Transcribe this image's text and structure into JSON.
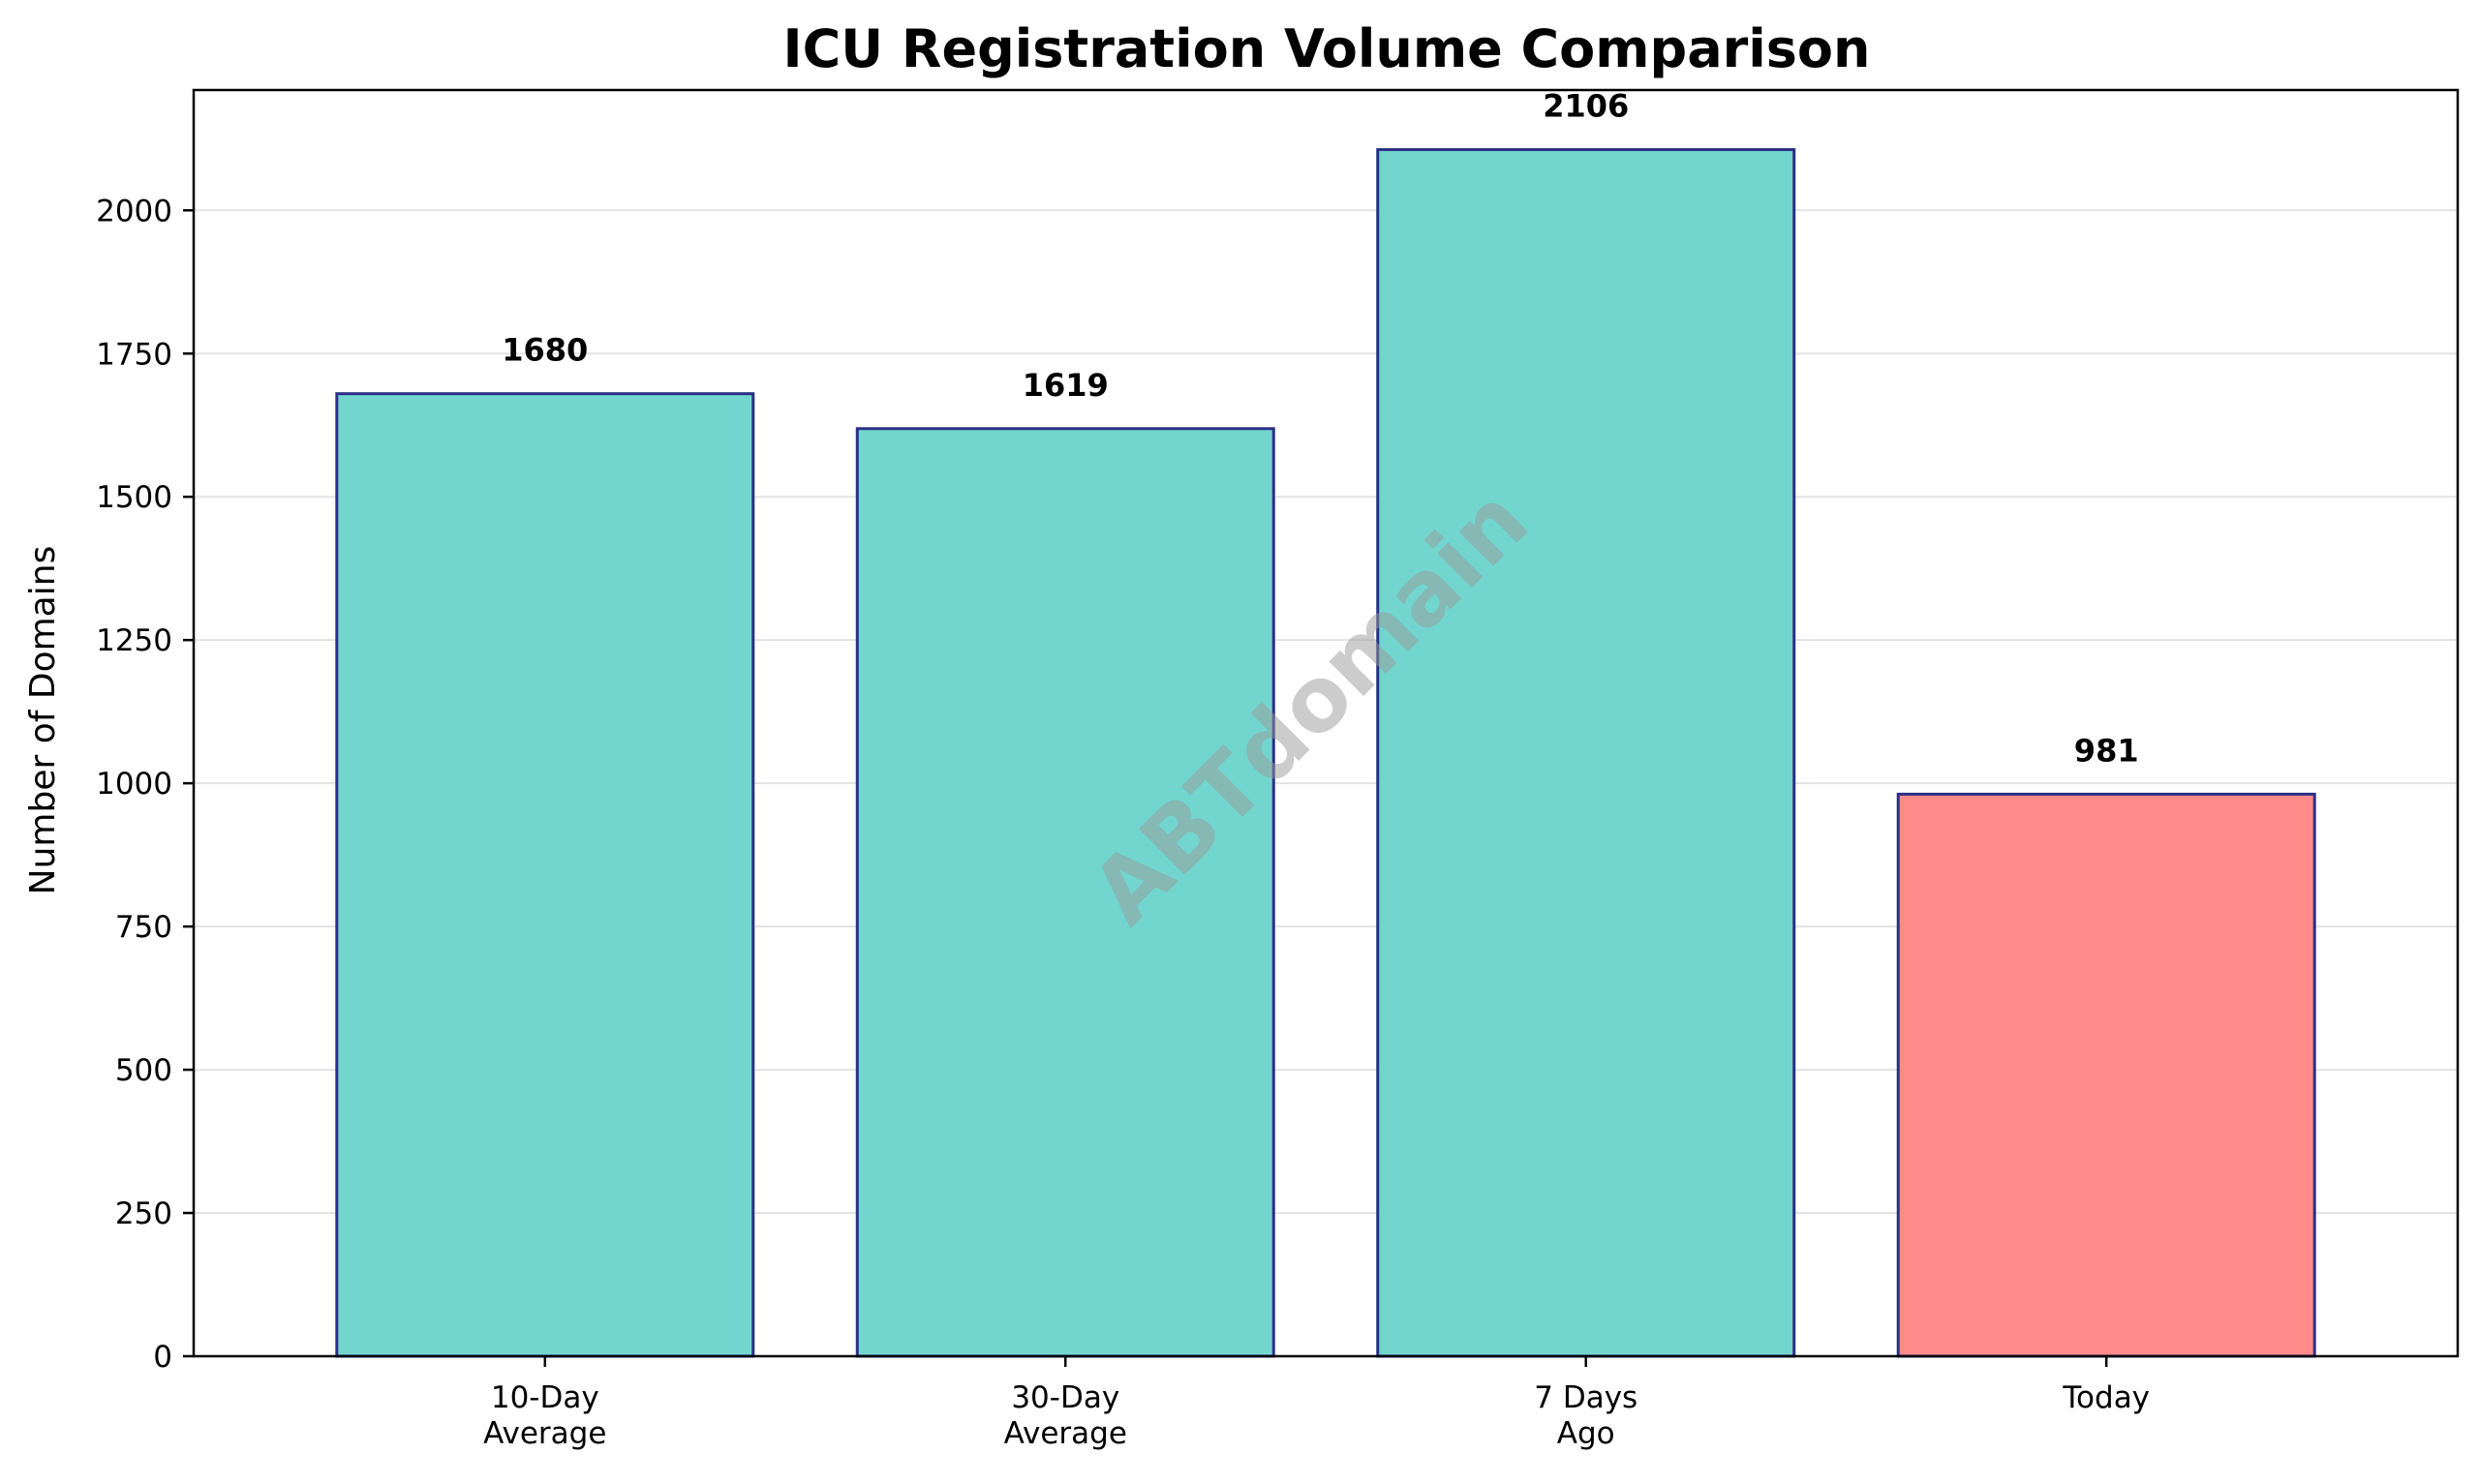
{
  "chart_data": {
    "type": "bar",
    "title": "ICU Registration Volume Comparison",
    "xlabel": "",
    "ylabel": "Number of Domains",
    "categories": [
      [
        "10-Day",
        "Average"
      ],
      [
        "30-Day",
        "Average"
      ],
      [
        "7 Days",
        "Ago"
      ],
      [
        "Today"
      ]
    ],
    "values": [
      1680,
      1619,
      2106,
      981
    ],
    "value_labels": [
      "1680",
      "1619",
      "2106",
      "981"
    ],
    "bar_colors": [
      "#72d6cf",
      "#72d6cf",
      "#72d6cf",
      "#ff8a8a"
    ],
    "bar_edge_color": "#2b2f86",
    "ylim": [
      0,
      2210
    ],
    "yticks": [
      0,
      250,
      500,
      750,
      1000,
      1250,
      1500,
      1750,
      2000
    ],
    "grid": true,
    "legend": "none",
    "watermark": "ABTdomain"
  }
}
